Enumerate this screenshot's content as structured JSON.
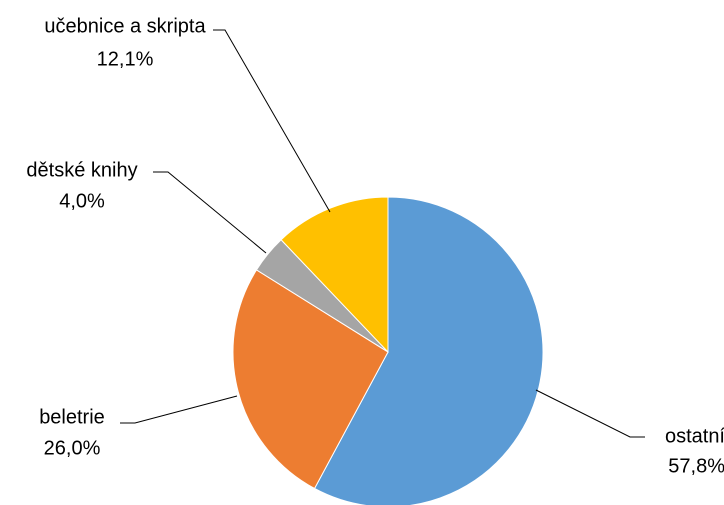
{
  "chart_data": {
    "type": "pie",
    "title": "",
    "slices": [
      {
        "label": "ostatní",
        "value": 57.8,
        "value_text": "57,8%",
        "color": "#5B9BD5"
      },
      {
        "label": "beletrie",
        "value": 26.0,
        "value_text": "26,0%",
        "color": "#ED7D31"
      },
      {
        "label": "dětské knihy",
        "value": 4.0,
        "value_text": "4,0%",
        "color": "#A5A5A5"
      },
      {
        "label": "učebnice a skripta",
        "value": 12.1,
        "value_text": "12,1%",
        "color": "#FFC000"
      }
    ],
    "start_angle": "12 o'clock",
    "direction": "clockwise",
    "legend": "none",
    "data_labels": "outside with leader lines"
  }
}
